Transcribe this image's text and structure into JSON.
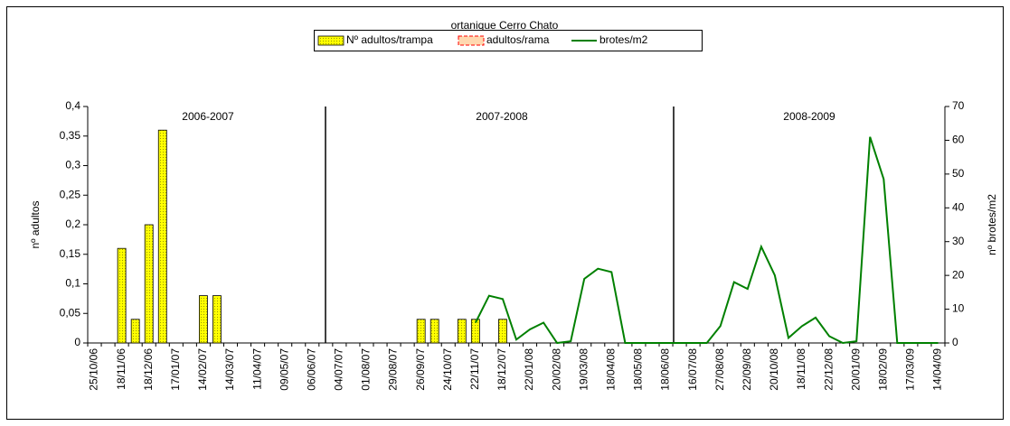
{
  "chart_data": {
    "type": "bar_line",
    "title": "ortanique Cerro Chato",
    "y_label": "nº adultos",
    "y2_label": "nº brotes/m2",
    "annotations": [
      "2006-2007",
      "2007-2008",
      "2008-2009"
    ],
    "categories": [
      "25/10/06",
      null,
      "18/11/06",
      null,
      "18/12/06",
      null,
      "17/01/07",
      null,
      "14/02/07",
      null,
      "14/03/07",
      null,
      "11/04/07",
      null,
      "09/05/07",
      null,
      "06/06/07",
      null,
      "04/07/07",
      null,
      "01/08/07",
      null,
      "29/08/07",
      null,
      "26/09/07",
      null,
      "24/10/07",
      null,
      "22/11/07",
      null,
      "18/12/07",
      null,
      "22/01/08",
      null,
      "20/02/08",
      null,
      "19/03/08",
      null,
      "18/04/08",
      null,
      "18/05/08",
      null,
      "18/06/08",
      null,
      "16/07/08",
      null,
      "27/08/08",
      null,
      "22/09/08",
      null,
      "20/10/08",
      null,
      "18/11/08",
      null,
      "22/12/08",
      null,
      "20/01/09",
      null,
      "18/02/09",
      null,
      "17/03/09",
      null,
      "14/04/09"
    ],
    "series": [
      {
        "name": "Nº adultos/trampa",
        "kind": "bar",
        "color": "#ffff00",
        "values": [
          null,
          null,
          0.16,
          0.04,
          0.2,
          0.36,
          null,
          null,
          0.08,
          0.08,
          null,
          null,
          null,
          null,
          null,
          null,
          null,
          null,
          null,
          null,
          null,
          null,
          null,
          null,
          0.04,
          0.04,
          null,
          0.04,
          0.04,
          null,
          0.04,
          null,
          null,
          null,
          null,
          null,
          null,
          null,
          null,
          null,
          null,
          null,
          null,
          null,
          null,
          null,
          null,
          null,
          null,
          null,
          null,
          null,
          null,
          null,
          null,
          null,
          null,
          null,
          null,
          null,
          null,
          null,
          null
        ]
      },
      {
        "name": "adultos/rama",
        "kind": "bar",
        "color": "#ff0000",
        "values": [
          null,
          null,
          null,
          null,
          null,
          null,
          null,
          null,
          null,
          null,
          null,
          null,
          null,
          null,
          null,
          null,
          null,
          null,
          null,
          null,
          null,
          null,
          null,
          null,
          null,
          null,
          null,
          null,
          null,
          null,
          null,
          null,
          null,
          null,
          null,
          null,
          null,
          null,
          null,
          null,
          null,
          null,
          null,
          null,
          null,
          null,
          null,
          null,
          null,
          null,
          null,
          null,
          null,
          null,
          null,
          null,
          null,
          null,
          null,
          null,
          null,
          null,
          null
        ]
      },
      {
        "name": "brotes/m2",
        "kind": "line",
        "color": "#008000",
        "axis": "y2",
        "values": [
          null,
          null,
          null,
          null,
          null,
          null,
          null,
          null,
          null,
          null,
          null,
          null,
          null,
          null,
          null,
          null,
          null,
          null,
          null,
          null,
          null,
          null,
          null,
          null,
          null,
          null,
          null,
          null,
          6,
          14,
          13,
          1,
          4,
          6,
          0,
          0.5,
          19,
          22,
          21,
          0,
          0,
          0,
          0,
          0,
          0,
          0,
          5,
          18,
          16,
          28.5,
          20,
          1.5,
          5,
          7.5,
          2,
          0,
          0.5,
          61,
          48.5,
          0,
          0,
          0,
          0
        ]
      }
    ],
    "ylim": [
      0,
      0.4
    ],
    "yticks": [
      0,
      {
        "value": 0.05,
        "label": "0,05"
      },
      {
        "value": 0.1,
        "label": "0,1"
      },
      {
        "value": 0.15,
        "label": "0,15"
      },
      {
        "value": 0.2,
        "label": "0,2"
      },
      {
        "value": 0.25,
        "label": "0,25"
      },
      {
        "value": 0.3,
        "label": "0,3"
      },
      {
        "value": 0.35,
        "label": "0,35"
      },
      {
        "value": 0.4,
        "label": "0,4"
      }
    ],
    "y2lim": [
      0,
      70
    ],
    "y2ticks": [
      0,
      10,
      20,
      30,
      40,
      50,
      60,
      70
    ],
    "grid": false,
    "legend": "top"
  }
}
